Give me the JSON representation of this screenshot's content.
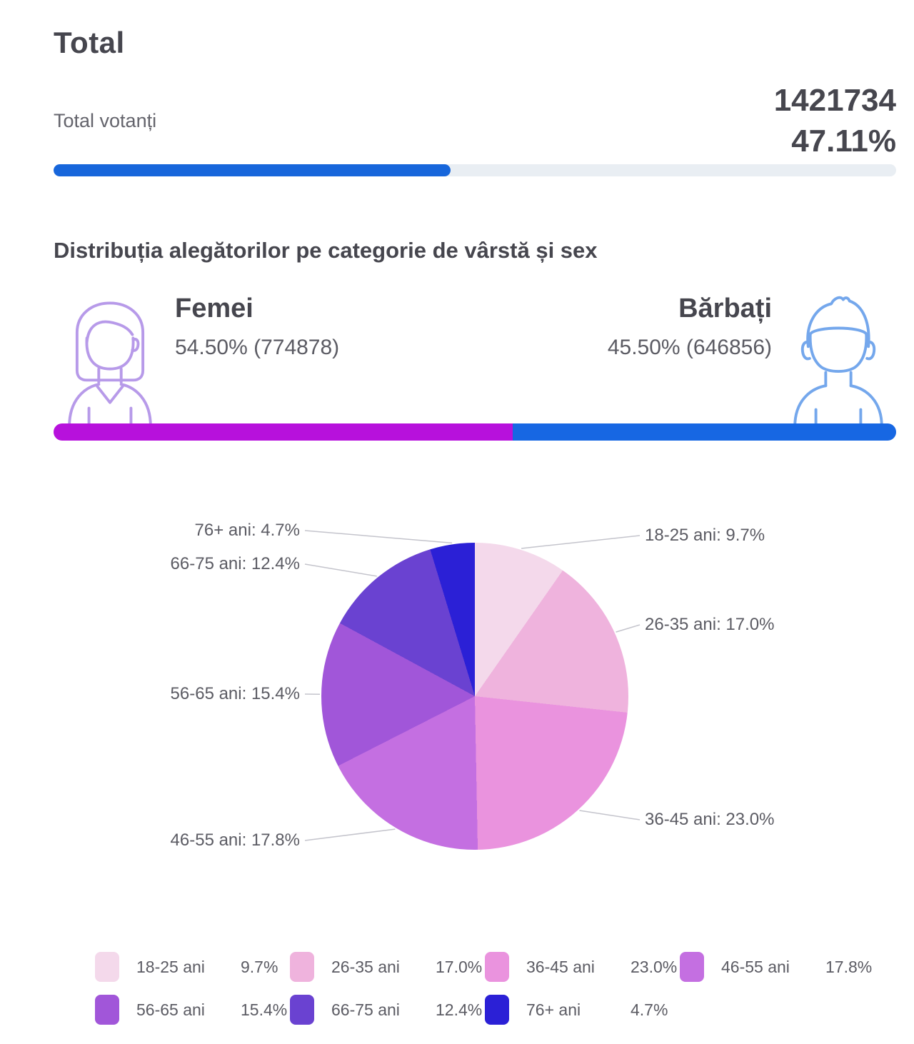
{
  "header": {
    "title": "Total"
  },
  "total": {
    "label": "Total votanți",
    "count": "1421734",
    "percent_label": "47.11%",
    "percent_value": 47.11
  },
  "gender_section": {
    "title": "Distribuția alegătorilor pe categorie de vârstă și sex",
    "female": {
      "label": "Femei",
      "value_label": "54.50% (774878)",
      "percent": 54.5
    },
    "male": {
      "label": "Bărbați",
      "value_label": "45.50% (646856)",
      "percent": 45.5
    }
  },
  "colors": {
    "accent_blue": "#1766db",
    "progress_track": "#e9eef3",
    "female_bar": "#b711dc",
    "male_bar": "#1767e3",
    "female_icon": "#b79ae9",
    "male_icon": "#74a7ec"
  },
  "icons": [
    "female-avatar-icon",
    "male-avatar-icon"
  ],
  "chart_data": {
    "type": "pie",
    "title": "",
    "categories": [
      "18-25 ani",
      "26-35 ani",
      "36-45 ani",
      "46-55 ani",
      "56-65 ani",
      "66-75 ani",
      "76+ ani"
    ],
    "values": [
      9.7,
      17.0,
      23.0,
      17.8,
      15.4,
      12.4,
      4.7
    ],
    "value_labels": [
      "9.7%",
      "17.0%",
      "23.0%",
      "17.8%",
      "15.4%",
      "12.4%",
      "4.7%"
    ],
    "colors": [
      "#f4d9eb",
      "#efb3dd",
      "#ea93de",
      "#c46fe1",
      "#a156d9",
      "#6a42d1",
      "#2b20d6"
    ],
    "start_angle_deg": 0,
    "direction": "clockwise",
    "legend_position": "bottom"
  }
}
